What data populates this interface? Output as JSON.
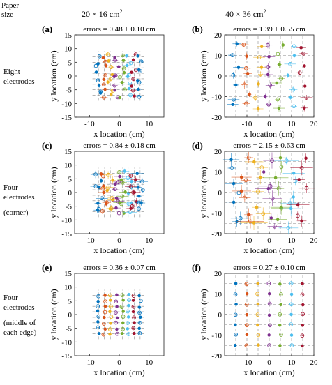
{
  "header": {
    "paper_size_label_1": "Paper",
    "paper_size_label_2": "size",
    "col1": "20  × 16 cm",
    "col1_sup": "2",
    "col2": "40 × 36 cm",
    "col2_sup": "2"
  },
  "rows": [
    {
      "lines": [
        "Eight",
        "electrodes"
      ]
    },
    {
      "lines": [
        "Four",
        "electrodes",
        "",
        "(corner)"
      ]
    },
    {
      "lines": [
        "Four",
        "electrodes",
        "",
        "(middle of",
        "each edge)"
      ]
    }
  ],
  "colors": [
    "#0072BD",
    "#D95319",
    "#EDB120",
    "#7E2F8E",
    "#77AC30",
    "#4DBEEE",
    "#A2142F"
  ],
  "chart_data": [
    {
      "type": "scatter",
      "panel": "(a)",
      "title": "errors = 0.48 ± 0.10 cm",
      "xlabel": "x location (cm)",
      "ylabel": "y location (cm)",
      "xlim": [
        -15,
        15
      ],
      "ylim": [
        -15,
        15
      ],
      "xticks": [
        -10,
        0,
        10
      ],
      "yticks": [
        -15,
        -10,
        -5,
        0,
        5,
        10,
        15
      ],
      "grid_x": [
        -7,
        -5,
        -3,
        -1,
        1,
        3,
        5,
        7
      ],
      "grid_y": [
        -7,
        -5,
        -3,
        -1,
        1,
        3,
        5,
        7
      ],
      "grid_x_extent": [
        -9,
        9
      ],
      "grid_y_extent": [
        -9,
        9
      ],
      "noise": 0.9,
      "errbar": 0.9
    },
    {
      "type": "scatter",
      "panel": "(b)",
      "title": "errors = 1.39 ± 0.55 cm",
      "xlabel": "x location (cm)",
      "ylabel": "y location (cm)",
      "xlim": [
        -20,
        20
      ],
      "ylim": [
        -20,
        20
      ],
      "xticks": [
        -10,
        0,
        10,
        20
      ],
      "yticks": [
        -20,
        -10,
        0,
        10,
        20
      ],
      "grid_x": [
        -15,
        -10,
        -5,
        0,
        5,
        10,
        15
      ],
      "grid_y": [
        -15,
        -10,
        -5,
        0,
        5,
        10,
        15
      ],
      "grid_x_extent": [
        -20,
        20
      ],
      "grid_y_extent": [
        -20,
        20
      ],
      "noise": 1.8,
      "errbar": 2.2
    },
    {
      "type": "scatter",
      "panel": "(c)",
      "title": "errors = 0.84 ± 0.18 cm",
      "xlabel": "x location (cm)",
      "ylabel": "y location (cm)",
      "xlim": [
        -15,
        15
      ],
      "ylim": [
        -15,
        15
      ],
      "xticks": [
        -10,
        0,
        10
      ],
      "yticks": [
        -15,
        -10,
        -5,
        0,
        5,
        10,
        15
      ],
      "grid_x": [
        -7,
        -5,
        -3,
        -1,
        1,
        3,
        5,
        7
      ],
      "grid_y": [
        -7,
        -5,
        -3,
        -1,
        1,
        3,
        5,
        7
      ],
      "grid_x_extent": [
        -9,
        9
      ],
      "grid_y_extent": [
        -9,
        9
      ],
      "noise": 1.2,
      "errbar": 1.6
    },
    {
      "type": "scatter",
      "panel": "(d)",
      "title": "errors = 2.15 ± 0.63 cm",
      "xlabel": "x location (cm)",
      "ylabel": "y location (cm)",
      "xlim": [
        -20,
        20
      ],
      "ylim": [
        -20,
        20
      ],
      "xticks": [
        -10,
        0,
        10,
        20
      ],
      "yticks": [
        -20,
        -10,
        0,
        10,
        20
      ],
      "grid_x": [
        -15,
        -10,
        -5,
        0,
        5,
        10,
        15
      ],
      "grid_y": [
        -15,
        -10,
        -5,
        0,
        5,
        10,
        15
      ],
      "grid_x_extent": [
        -20,
        20
      ],
      "grid_y_extent": [
        -20,
        20
      ],
      "noise": 2.6,
      "errbar": 4.5
    },
    {
      "type": "scatter",
      "panel": "(e)",
      "title": "errors = 0.36 ± 0.07 cm",
      "xlabel": "x location (cm)",
      "ylabel": "y location (cm)",
      "xlim": [
        -15,
        15
      ],
      "ylim": [
        -15,
        15
      ],
      "xticks": [
        -10,
        0,
        10
      ],
      "yticks": [
        -15,
        -10,
        -5,
        0,
        5,
        10,
        15
      ],
      "grid_x": [
        -7,
        -5,
        -3,
        -1,
        1,
        3,
        5,
        7
      ],
      "grid_y": [
        -7,
        -5,
        -3,
        -1,
        1,
        3,
        5,
        7
      ],
      "grid_x_extent": [
        -9,
        9
      ],
      "grid_y_extent": [
        -9,
        9
      ],
      "noise": 0.35,
      "errbar": 0.5
    },
    {
      "type": "scatter",
      "panel": "(f)",
      "title": "errors = 0.27 ± 0.10 cm",
      "xlabel": "x location (cm)",
      "ylabel": "y location (cm)",
      "xlim": [
        -20,
        20
      ],
      "ylim": [
        -20,
        20
      ],
      "xticks": [
        -10,
        0,
        10,
        20
      ],
      "yticks": [
        -20,
        -10,
        0,
        10,
        20
      ],
      "grid_x": [
        -15,
        -10,
        -5,
        0,
        5,
        10,
        15
      ],
      "grid_y": [
        -15,
        -10,
        -5,
        0,
        5,
        10,
        15
      ],
      "grid_x_extent": [
        -20,
        20
      ],
      "grid_y_extent": [
        -20,
        20
      ],
      "noise": 0.3,
      "errbar": 0.6
    }
  ]
}
